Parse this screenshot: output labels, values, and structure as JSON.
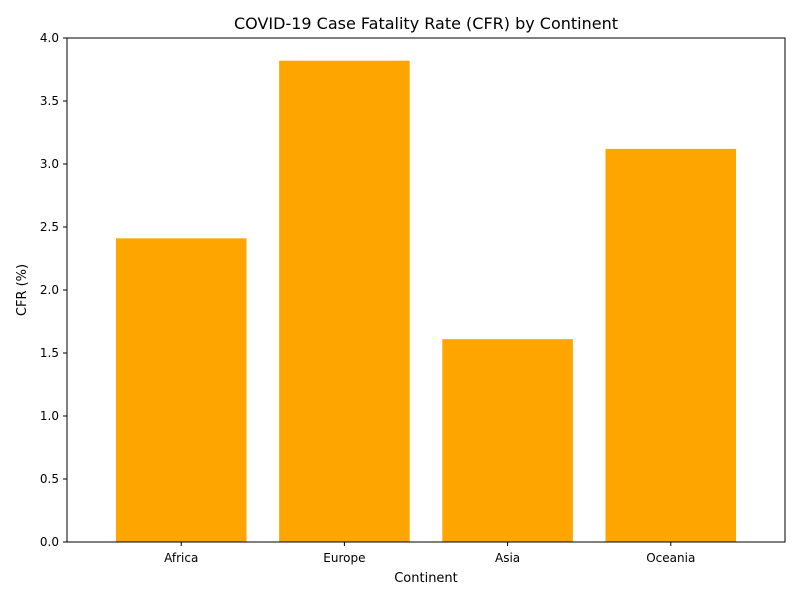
{
  "chart_data": {
    "type": "bar",
    "title": "COVID-19 Case Fatality Rate (CFR) by Continent",
    "xlabel": "Continent",
    "ylabel": "CFR (%)",
    "categories": [
      "Africa",
      "Europe",
      "Asia",
      "Oceania"
    ],
    "values": [
      2.41,
      3.82,
      1.61,
      3.12
    ],
    "ylim": [
      0,
      4.0
    ],
    "yticks": [
      "0.0",
      "0.5",
      "1.0",
      "1.5",
      "2.0",
      "2.5",
      "3.0",
      "3.5",
      "4.0"
    ],
    "bar_color": "#FFA500",
    "grid": false,
    "legend": false
  }
}
